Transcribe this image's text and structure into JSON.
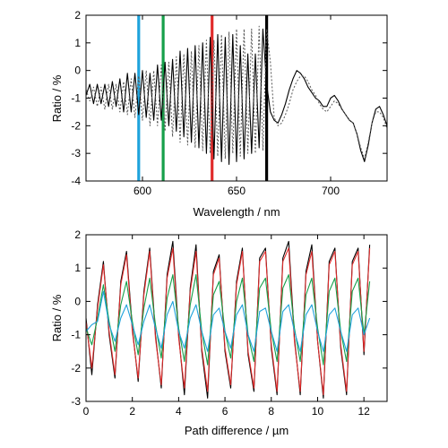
{
  "colors": {
    "axis": "#000000",
    "blue": "#1fa3dc",
    "green": "#16a04a",
    "red": "#e02b2b",
    "black": "#000000",
    "dotted": "#555555"
  },
  "chart_data": [
    {
      "type": "line",
      "xlabel": "Wavelength / nm",
      "ylabel": "Ratio / %",
      "xlim": [
        570,
        730
      ],
      "ylim": [
        -4,
        2
      ],
      "xticks": [
        600,
        650,
        700
      ],
      "yticks": [
        -4,
        -3,
        -2,
        -1,
        0,
        1,
        2
      ],
      "xtick_labels": [
        "600",
        "650",
        "700"
      ],
      "ytick_labels": [
        "-4",
        "-3",
        "-2",
        "-1",
        "0",
        "1",
        "2"
      ],
      "vlines": [
        {
          "x": 598,
          "color": "blue"
        },
        {
          "x": 611,
          "color": "green"
        },
        {
          "x": 637,
          "color": "red"
        },
        {
          "x": 666,
          "color": "black"
        }
      ],
      "series": [
        {
          "style": "solid",
          "color": "black",
          "x": [
            570,
            572,
            574,
            576,
            578,
            580,
            582,
            584,
            586,
            588,
            590,
            592,
            594,
            596,
            598,
            600,
            602,
            604,
            606,
            608,
            610,
            612,
            614,
            616,
            618,
            620,
            622,
            624,
            626,
            628,
            630,
            632,
            634,
            636,
            638,
            640,
            642,
            644,
            646,
            648,
            650,
            652,
            654,
            656,
            658,
            660,
            662,
            664,
            666,
            668,
            670,
            672,
            674,
            676,
            678,
            680,
            682,
            684,
            686,
            688,
            690,
            692,
            694,
            696,
            698,
            700,
            702,
            704,
            706,
            708,
            710,
            712,
            714,
            716,
            718,
            720,
            722,
            724,
            726,
            728,
            730
          ],
          "values": [
            -0.9,
            -0.5,
            -1.2,
            -0.5,
            -1.2,
            -0.5,
            -1.3,
            -0.4,
            -1.3,
            -0.3,
            -1.5,
            -0.1,
            -1.5,
            -0.1,
            -1.6,
            0.0,
            -1.7,
            -0.1,
            -1.8,
            0.2,
            -1.8,
            0.3,
            -2.0,
            0.4,
            -2.2,
            0.7,
            -2.4,
            0.8,
            -2.6,
            0.9,
            -2.8,
            1.0,
            -3.0,
            1.2,
            -3.2,
            1.3,
            -3.3,
            1.2,
            -3.4,
            1.3,
            -3.3,
            0.9,
            -3.2,
            0.6,
            -3.0,
            0.6,
            -2.8,
            1.5,
            -0.5,
            -1.5,
            -1.8,
            -1.9,
            -1.6,
            -1.2,
            -0.7,
            -0.3,
            0.0,
            -0.1,
            -0.3,
            -0.6,
            -0.8,
            -1.0,
            -1.1,
            -1.3,
            -1.3,
            -1.0,
            -0.9,
            -1.1,
            -1.4,
            -1.6,
            -1.8,
            -1.9,
            -2.3,
            -2.9,
            -3.3,
            -2.7,
            -1.9,
            -1.4,
            -1.3,
            -1.6,
            -2.0
          ]
        },
        {
          "style": "dotted",
          "color": "dotted",
          "x": [
            570,
            572,
            574,
            576,
            578,
            580,
            582,
            584,
            586,
            588,
            590,
            592,
            594,
            596,
            598,
            600,
            602,
            604,
            606,
            608,
            610,
            612,
            614,
            616,
            618,
            620,
            622,
            624,
            626,
            628,
            630,
            632,
            634,
            636,
            638,
            640,
            642,
            644,
            646,
            648,
            650,
            652,
            654,
            656,
            658,
            660,
            662,
            664,
            666,
            668,
            670,
            672,
            674,
            676,
            678,
            680,
            682,
            684,
            686,
            688,
            690,
            692,
            694,
            696,
            698,
            700,
            702,
            704,
            706,
            708,
            710,
            712,
            714,
            716,
            718,
            720,
            722,
            724,
            726,
            728,
            730
          ],
          "values": [
            -0.7,
            -1.1,
            -0.6,
            -1.3,
            -0.6,
            -1.4,
            -0.5,
            -1.4,
            -0.5,
            -1.5,
            -0.4,
            -1.6,
            -0.3,
            -1.7,
            -0.2,
            -1.8,
            0.0,
            -2.0,
            0.0,
            -2.0,
            0.2,
            -2.2,
            0.3,
            -2.4,
            0.5,
            -2.6,
            0.6,
            -2.7,
            0.7,
            -2.8,
            0.9,
            -2.9,
            1.1,
            -3.0,
            1.1,
            -3.1,
            1.3,
            -3.2,
            1.4,
            -3.0,
            1.5,
            -3.1,
            1.5,
            -3.0,
            1.5,
            -3.0,
            1.6,
            -2.9,
            1.5,
            0.3,
            -1.7,
            -2.0,
            -1.9,
            -1.6,
            -1.2,
            -0.7,
            -0.4,
            -0.2,
            -0.2,
            -0.4,
            -0.7,
            -0.9,
            -1.2,
            -1.4,
            -1.5,
            -1.3,
            -1.1,
            -1.2,
            -1.4,
            -1.6,
            -1.8,
            -1.9,
            -2.3,
            -2.8,
            -3.2,
            -2.6,
            -1.9,
            -1.5,
            -1.5,
            -1.7,
            -2.1
          ]
        }
      ]
    },
    {
      "type": "line",
      "xlabel": "Path difference / µm",
      "ylabel": "Ratio / %",
      "xlim": [
        0,
        13
      ],
      "ylim": [
        -3,
        2
      ],
      "xticks": [
        0,
        2,
        4,
        6,
        8,
        10,
        12
      ],
      "yticks": [
        -3,
        -2,
        -1,
        0,
        1,
        2
      ],
      "xtick_labels": [
        "0",
        "2",
        "4",
        "6",
        "8",
        "10",
        "12"
      ],
      "ytick_labels": [
        "-3",
        "-2",
        "-1",
        "0",
        "1",
        "2"
      ],
      "series": [
        {
          "color": "black",
          "x": [
            0,
            0.25,
            0.5,
            0.75,
            1,
            1.25,
            1.5,
            1.75,
            2,
            2.25,
            2.5,
            2.75,
            3,
            3.25,
            3.5,
            3.75,
            4,
            4.25,
            4.5,
            4.75,
            5,
            5.25,
            5.5,
            5.75,
            6,
            6.25,
            6.5,
            6.75,
            7,
            7.25,
            7.5,
            7.75,
            8,
            8.25,
            8.5,
            8.75,
            9,
            9.25,
            9.5,
            9.75,
            10,
            10.25,
            10.5,
            10.75,
            11,
            11.25,
            11.5,
            11.75,
            12,
            12.25
          ],
          "values": [
            -0.5,
            -2.2,
            -0.1,
            1.2,
            -1.0,
            -2.3,
            0.6,
            1.5,
            -0.8,
            -2.4,
            0.3,
            1.6,
            -1.0,
            -2.6,
            0.8,
            1.8,
            -1.0,
            -2.8,
            0.4,
            1.7,
            -1.5,
            -2.9,
            0.9,
            1.4,
            -1.5,
            -2.6,
            0.6,
            1.6,
            -1.6,
            -2.7,
            1.3,
            1.6,
            -1.4,
            -2.8,
            1.3,
            1.8,
            -1.1,
            -2.8,
            0.9,
            1.7,
            -1.2,
            -2.9,
            1.2,
            1.6,
            -1.4,
            -2.8,
            1.2,
            1.6,
            -1.6,
            1.7
          ]
        },
        {
          "color": "red",
          "x": [
            0,
            0.25,
            0.5,
            0.75,
            1,
            1.25,
            1.5,
            1.75,
            2,
            2.25,
            2.5,
            2.75,
            3,
            3.25,
            3.5,
            3.75,
            4,
            4.25,
            4.5,
            4.75,
            5,
            5.25,
            5.5,
            5.75,
            6,
            6.25,
            6.5,
            6.75,
            7,
            7.25,
            7.5,
            7.75,
            8,
            8.25,
            8.5,
            8.75,
            9,
            9.25,
            9.5,
            9.75,
            10,
            10.25,
            10.5,
            10.75,
            11,
            11.25,
            11.5,
            11.75,
            12,
            12.25
          ],
          "values": [
            -0.6,
            -2.0,
            -0.2,
            1.1,
            -0.9,
            -2.2,
            0.5,
            1.4,
            -0.9,
            -2.3,
            0.2,
            1.5,
            -1.1,
            -2.5,
            0.7,
            1.6,
            -1.1,
            -2.6,
            0.3,
            1.5,
            -1.4,
            -2.7,
            0.8,
            1.3,
            -1.4,
            -2.5,
            0.5,
            1.5,
            -1.5,
            -2.6,
            1.2,
            1.5,
            -1.3,
            -2.7,
            1.2,
            1.6,
            -1.2,
            -2.7,
            0.8,
            1.5,
            -1.2,
            -2.8,
            1.1,
            1.5,
            -1.3,
            -2.7,
            1.1,
            1.5,
            -1.5,
            1.6
          ]
        },
        {
          "color": "green",
          "x": [
            0,
            0.25,
            0.5,
            0.75,
            1,
            1.25,
            1.5,
            1.75,
            2,
            2.25,
            2.5,
            2.75,
            3,
            3.25,
            3.5,
            3.75,
            4,
            4.25,
            4.5,
            4.75,
            5,
            5.25,
            5.5,
            5.75,
            6,
            6.25,
            6.5,
            6.75,
            7,
            7.25,
            7.5,
            7.75,
            8,
            8.25,
            8.5,
            8.75,
            9,
            9.25,
            9.5,
            9.75,
            10,
            10.25,
            10.5,
            10.75,
            11,
            11.25,
            11.5,
            11.75,
            12,
            12.25
          ],
          "values": [
            -0.8,
            -1.3,
            -0.5,
            0.5,
            -0.6,
            -1.5,
            -0.1,
            0.6,
            -0.6,
            -1.6,
            -0.2,
            0.7,
            -0.7,
            -1.7,
            0.1,
            0.8,
            -0.8,
            -1.8,
            -0.1,
            0.8,
            -0.9,
            -1.9,
            0.2,
            0.6,
            -0.9,
            -1.7,
            0.0,
            0.7,
            -1.0,
            -1.8,
            0.4,
            0.7,
            -0.9,
            -1.8,
            0.4,
            0.8,
            -0.8,
            -1.8,
            0.2,
            0.7,
            -0.8,
            -1.9,
            0.3,
            0.7,
            -0.9,
            -1.8,
            0.3,
            0.7,
            -1.0,
            0.6
          ]
        },
        {
          "color": "blue",
          "x": [
            0,
            0.25,
            0.5,
            0.75,
            1,
            1.25,
            1.5,
            1.75,
            2,
            2.25,
            2.5,
            2.75,
            3,
            3.25,
            3.5,
            3.75,
            4,
            4.25,
            4.5,
            4.75,
            5,
            5.25,
            5.5,
            5.75,
            6,
            6.25,
            6.5,
            6.75,
            7,
            7.25,
            7.5,
            7.75,
            8,
            8.25,
            8.5,
            8.75,
            9,
            9.25,
            9.5,
            9.75,
            10,
            10.25,
            10.5,
            10.75,
            11,
            11.25,
            11.5,
            11.75,
            12,
            12.25
          ],
          "values": [
            -0.9,
            -0.7,
            -0.6,
            0.3,
            -0.7,
            -1.2,
            -0.5,
            -0.1,
            -0.7,
            -1.3,
            -0.6,
            -0.1,
            -0.8,
            -1.4,
            -0.4,
            0.0,
            -0.9,
            -1.4,
            -0.5,
            -0.1,
            -0.9,
            -1.5,
            -0.4,
            -0.2,
            -0.9,
            -1.4,
            -0.4,
            -0.1,
            -1.0,
            -1.5,
            -0.3,
            -0.2,
            -0.9,
            -1.5,
            -0.3,
            -0.1,
            -0.9,
            -1.5,
            -0.4,
            -0.1,
            -0.9,
            -1.5,
            -0.4,
            -0.2,
            -0.9,
            -1.5,
            -0.4,
            -0.2,
            -1.0,
            -0.5
          ]
        }
      ]
    }
  ]
}
